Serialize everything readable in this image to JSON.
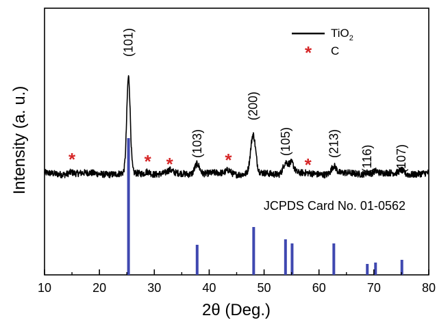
{
  "chart_data": {
    "type": "line",
    "xlabel": "2θ (Deg.)",
    "ylabel": "Intensity (a. u.)",
    "xlim": [
      10,
      80
    ],
    "x_ticks": [
      "10",
      "20",
      "30",
      "40",
      "50",
      "60",
      "70",
      "80"
    ],
    "legend": {
      "placement": "top-right",
      "line_label_main": "TiO",
      "line_label_sub": "2",
      "marker_symbol": "*",
      "marker_label": "C"
    },
    "series_color": "#000000",
    "marker_color": "#d62728",
    "reference_color": "#3f48b0",
    "pattern_peaks": [
      {
        "x": 14.8,
        "h": 0.02
      },
      {
        "x": 25.3,
        "h": 1.0
      },
      {
        "x": 28.8,
        "h": 0.03
      },
      {
        "x": 32.8,
        "h": 0.03
      },
      {
        "x": 37.8,
        "h": 0.11
      },
      {
        "x": 43.5,
        "h": 0.04
      },
      {
        "x": 48.0,
        "h": 0.4
      },
      {
        "x": 53.9,
        "h": 0.12
      },
      {
        "x": 55.0,
        "h": 0.11
      },
      {
        "x": 62.7,
        "h": 0.08
      },
      {
        "x": 68.8,
        "h": 0.02
      },
      {
        "x": 70.3,
        "h": 0.03
      },
      {
        "x": 75.0,
        "h": 0.04
      }
    ],
    "peak_labels": [
      {
        "x": 25.3,
        "label": "(101)"
      },
      {
        "x": 37.8,
        "label": "(103)"
      },
      {
        "x": 48.0,
        "label": "(200)"
      },
      {
        "x": 53.9,
        "label": "(105)"
      },
      {
        "x": 62.7,
        "label": "(213)"
      },
      {
        "x": 68.8,
        "label": "(116)"
      },
      {
        "x": 75.0,
        "label": "(107)"
      }
    ],
    "carbon_markers": [
      15.0,
      28.8,
      32.8,
      43.5,
      58.0
    ],
    "reference_title": "JCPDS Card No. 01-0562",
    "reference_lines": [
      {
        "x": 25.3,
        "intensity": 100
      },
      {
        "x": 37.8,
        "intensity": 22
      },
      {
        "x": 48.1,
        "intensity": 35
      },
      {
        "x": 53.9,
        "intensity": 26
      },
      {
        "x": 55.1,
        "intensity": 23
      },
      {
        "x": 62.7,
        "intensity": 23
      },
      {
        "x": 68.8,
        "intensity": 8
      },
      {
        "x": 70.3,
        "intensity": 9
      },
      {
        "x": 75.1,
        "intensity": 11
      }
    ]
  }
}
